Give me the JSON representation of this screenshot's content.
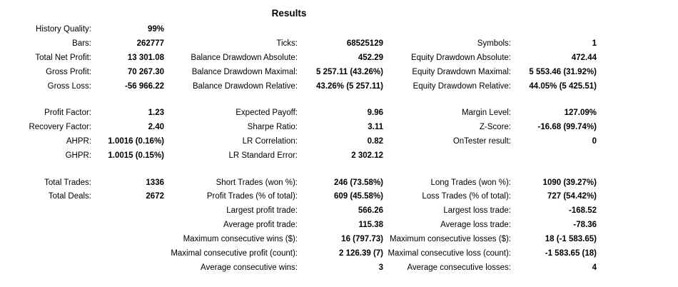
{
  "title": "Results",
  "rows": [
    [
      [
        "History Quality:",
        "99%"
      ],
      null,
      null
    ],
    [
      [
        "Bars:",
        "262777"
      ],
      [
        "Ticks:",
        "68525129"
      ],
      [
        "Symbols:",
        "1"
      ]
    ],
    [
      [
        "Total Net Profit:",
        "13 301.08"
      ],
      [
        "Balance Drawdown Absolute:",
        "452.29"
      ],
      [
        "Equity Drawdown Absolute:",
        "472.44"
      ]
    ],
    [
      [
        "Gross Profit:",
        "70 267.30"
      ],
      [
        "Balance Drawdown Maximal:",
        "5 257.11 (43.26%)"
      ],
      [
        "Equity Drawdown Maximal:",
        "5 553.46 (31.92%)"
      ]
    ],
    [
      [
        "Gross Loss:",
        "-56 966.22"
      ],
      [
        "Balance Drawdown Relative:",
        "43.26% (5 257.11)"
      ],
      [
        "Equity Drawdown Relative:",
        "44.05% (5 425.51)"
      ]
    ],
    [
      [
        "Profit Factor:",
        "1.23"
      ],
      [
        "Expected Payoff:",
        "9.96"
      ],
      [
        "Margin Level:",
        "127.09%"
      ]
    ],
    [
      [
        "Recovery Factor:",
        "2.40"
      ],
      [
        "Sharpe Ratio:",
        "3.11"
      ],
      [
        "Z-Score:",
        "-16.68 (99.74%)"
      ]
    ],
    [
      [
        "AHPR:",
        "1.0016 (0.16%)"
      ],
      [
        "LR Correlation:",
        "0.82"
      ],
      [
        "OnTester result:",
        "0"
      ]
    ],
    [
      [
        "GHPR:",
        "1.0015 (0.15%)"
      ],
      [
        "LR Standard Error:",
        "2 302.12"
      ],
      null
    ],
    [
      [
        "Total Trades:",
        "1336"
      ],
      [
        "Short Trades (won %):",
        "246 (73.58%)"
      ],
      [
        "Long Trades (won %):",
        "1090 (39.27%)"
      ]
    ],
    [
      [
        "Total Deals:",
        "2672"
      ],
      [
        "Profit Trades (% of total):",
        "609 (45.58%)"
      ],
      [
        "Loss Trades (% of total):",
        "727 (54.42%)"
      ]
    ],
    [
      null,
      [
        "Largest profit trade:",
        "566.26"
      ],
      [
        "Largest loss trade:",
        "-168.52"
      ]
    ],
    [
      null,
      [
        "Average profit trade:",
        "115.38"
      ],
      [
        "Average loss trade:",
        "-78.36"
      ]
    ],
    [
      null,
      [
        "Maximum consecutive wins ($):",
        "16 (797.73)"
      ],
      [
        "Maximum consecutive losses ($):",
        "18 (-1 583.65)"
      ]
    ],
    [
      null,
      [
        "Maximal consecutive profit (count):",
        "2 126.39 (7)"
      ],
      [
        "Maximal consecutive loss (count):",
        "-1 583.65 (18)"
      ]
    ],
    [
      null,
      [
        "Average consecutive wins:",
        "3"
      ],
      [
        "Average consecutive losses:",
        "4"
      ]
    ]
  ]
}
